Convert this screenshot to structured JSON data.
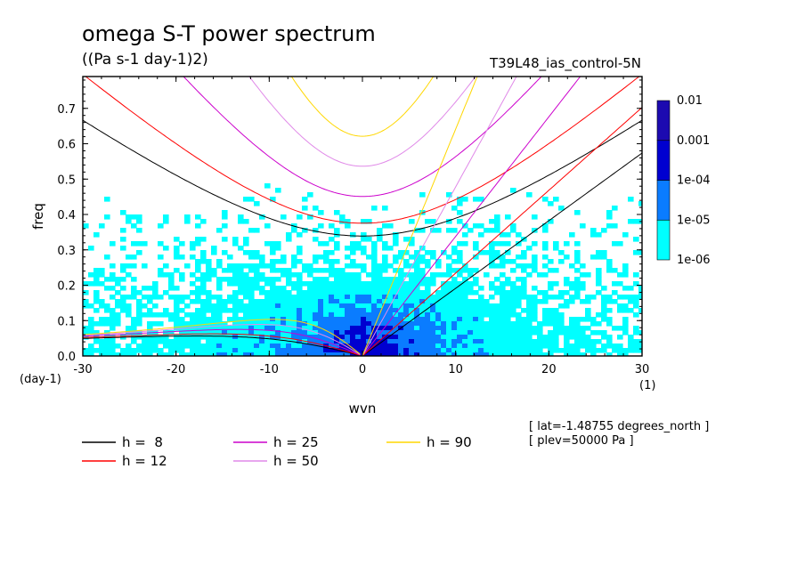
{
  "chart_data": {
    "type": "heatmap",
    "title": "omega S-T power spectrum",
    "subtitle": "((Pa s-1 day-1)2)",
    "experiment": "T39L48_ias_control-5N",
    "xlabel": "wvn",
    "ylabel": "freq",
    "x_unit": "(1)",
    "y_unit": "(day-1)",
    "xlim": [
      -30,
      30
    ],
    "ylim": [
      0,
      0.79
    ],
    "x_ticks": [
      "-30",
      "-20",
      "-10",
      "0",
      "10",
      "20",
      "30"
    ],
    "y_ticks": [
      "0.0",
      "0.1",
      "0.2",
      "0.3",
      "0.4",
      "0.5",
      "0.6",
      "0.7"
    ],
    "colorbar": {
      "levels": [
        "1e-06",
        "1e-05",
        "1e-04",
        "0.001",
        "0.01"
      ],
      "colors": [
        "#00ffff",
        "#0a7cff",
        "#0000d0",
        "#1c0ab0"
      ]
    },
    "annotations": [
      "[ lat=-1.48755 degrees_north ]",
      "[ plev=50000 Pa ]"
    ],
    "dispersion_curves": [
      {
        "label": "h =  8",
        "h": 8,
        "color": "#000000"
      },
      {
        "label": "h = 12",
        "h": 12,
        "color": "#ff0000"
      },
      {
        "label": "h = 25",
        "h": 25,
        "color": "#cc00cc"
      },
      {
        "label": "h = 50",
        "h": 50,
        "color": "#e089e8"
      },
      {
        "label": "h = 90",
        "h": 90,
        "color": "#ffd700"
      }
    ]
  }
}
